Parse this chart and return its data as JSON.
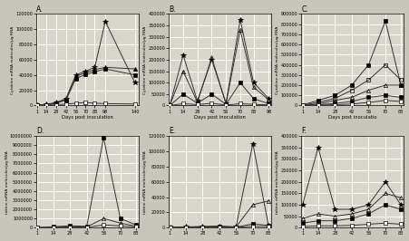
{
  "panels": [
    {
      "label": "A.",
      "xlabel": "Days post inoculation",
      "ylabel": "Cytokine mRNA molecules/µg RNA",
      "xlim": [
        0,
        145
      ],
      "ylim": [
        0,
        120000
      ],
      "yticks": [
        0,
        20000,
        40000,
        60000,
        80000,
        100000,
        120000
      ],
      "xticks": [
        1,
        14,
        28,
        42,
        56,
        70,
        83,
        98,
        140
      ],
      "series": [
        {
          "x": [
            1,
            14,
            28,
            42,
            56,
            70,
            83,
            98,
            140
          ],
          "y": [
            500,
            1500,
            4000,
            9000,
            40000,
            45000,
            50000,
            110000,
            30000
          ],
          "marker": "*",
          "mfc": "black",
          "mec": "black",
          "ms": 4,
          "lw": 0.7
        },
        {
          "x": [
            1,
            14,
            28,
            42,
            56,
            70,
            83,
            98,
            140
          ],
          "y": [
            400,
            1200,
            3500,
            8000,
            38000,
            43000,
            47000,
            50000,
            48000
          ],
          "marker": "^",
          "mfc": "black",
          "mec": "black",
          "ms": 3,
          "lw": 0.7
        },
        {
          "x": [
            1,
            14,
            28,
            42,
            56,
            70,
            83,
            98,
            140
          ],
          "y": [
            300,
            1000,
            3000,
            7000,
            35000,
            41000,
            44000,
            48000,
            40000
          ],
          "marker": "s",
          "mfc": "black",
          "mec": "black",
          "ms": 3,
          "lw": 0.7
        },
        {
          "x": [
            1,
            14,
            28,
            42,
            56,
            70,
            83,
            98,
            140
          ],
          "y": [
            200,
            600,
            1000,
            2000,
            3000,
            4000,
            3000,
            2500,
            2000
          ],
          "marker": "s",
          "mfc": "white",
          "mec": "black",
          "ms": 3,
          "lw": 0.7
        }
      ]
    },
    {
      "label": "B.",
      "xlabel": "Days post inoculation",
      "ylabel": "Cytokine mRNA molecules/µg RNA",
      "xlim": [
        0,
        100
      ],
      "ylim": [
        0,
        400000
      ],
      "yticks": [
        0,
        50000,
        100000,
        150000,
        200000,
        250000,
        300000,
        350000,
        400000
      ],
      "xticks": [
        1,
        14,
        28,
        42,
        56,
        70,
        83,
        98
      ],
      "series": [
        {
          "x": [
            1,
            14,
            28,
            42,
            56,
            70,
            83,
            98
          ],
          "y": [
            2000,
            220000,
            20000,
            200000,
            10000,
            375000,
            100000,
            30000
          ],
          "marker": "*",
          "mfc": "black",
          "mec": "black",
          "ms": 4,
          "lw": 0.7
        },
        {
          "x": [
            1,
            14,
            28,
            42,
            56,
            70,
            83,
            98
          ],
          "y": [
            1500,
            150000,
            15000,
            210000,
            8000,
            330000,
            80000,
            25000
          ],
          "marker": "^",
          "mfc": "none",
          "mec": "black",
          "ms": 3,
          "lw": 0.7
        },
        {
          "x": [
            1,
            14,
            28,
            42,
            56,
            70,
            83,
            98
          ],
          "y": [
            800,
            50000,
            10000,
            50000,
            5000,
            100000,
            30000,
            8000
          ],
          "marker": "s",
          "mfc": "black",
          "mec": "black",
          "ms": 3,
          "lw": 0.7
        },
        {
          "x": [
            1,
            14,
            28,
            42,
            56,
            70,
            83,
            98
          ],
          "y": [
            300,
            8000,
            4000,
            10000,
            2000,
            8000,
            5000,
            3000
          ],
          "marker": "s",
          "mfc": "white",
          "mec": "black",
          "ms": 3,
          "lw": 0.7
        }
      ]
    },
    {
      "label": "C.",
      "xlabel": "Days post inoculatio",
      "ylabel": "Cytokine mRNA molecules/µg RNA",
      "xlim": [
        0,
        85
      ],
      "ylim": [
        0,
        900000
      ],
      "yticks": [
        0,
        100000,
        200000,
        300000,
        400000,
        500000,
        600000,
        700000,
        800000,
        900000
      ],
      "xticks": [
        1,
        14,
        28,
        42,
        56,
        70,
        83
      ],
      "series": [
        {
          "x": [
            1,
            14,
            28,
            42,
            56,
            70,
            83
          ],
          "y": [
            5000,
            50000,
            100000,
            200000,
            400000,
            830000,
            200000
          ],
          "marker": "s",
          "mfc": "black",
          "mec": "black",
          "ms": 3,
          "lw": 0.7
        },
        {
          "x": [
            1,
            14,
            28,
            42,
            56,
            70,
            83
          ],
          "y": [
            3000,
            30000,
            70000,
            150000,
            250000,
            400000,
            250000
          ],
          "marker": "s",
          "mfc": "none",
          "mec": "black",
          "ms": 3,
          "lw": 0.7
        },
        {
          "x": [
            1,
            14,
            28,
            42,
            56,
            70,
            83
          ],
          "y": [
            2000,
            15000,
            50000,
            80000,
            150000,
            200000,
            200000
          ],
          "marker": "^",
          "mfc": "none",
          "mec": "black",
          "ms": 3,
          "lw": 0.7
        },
        {
          "x": [
            1,
            14,
            28,
            42,
            56,
            70,
            83
          ],
          "y": [
            1000,
            8000,
            20000,
            40000,
            80000,
            100000,
            80000
          ],
          "marker": "s",
          "mfc": "black",
          "mec": "black",
          "ms": 3,
          "lw": 0.7
        },
        {
          "x": [
            1,
            14,
            28,
            42,
            56,
            70,
            83
          ],
          "y": [
            500,
            3000,
            8000,
            15000,
            30000,
            50000,
            40000
          ],
          "marker": "s",
          "mfc": "white",
          "mec": "black",
          "ms": 3,
          "lw": 0.7
        }
      ]
    },
    {
      "label": "D.",
      "xlabel": "",
      "ylabel": "tokine mRNA molecules/µg RNA",
      "xlim": [
        0,
        85
      ],
      "ylim": [
        0,
        10000000
      ],
      "yticks": [
        0,
        1000000,
        2000000,
        3000000,
        4000000,
        5000000,
        6000000,
        7000000,
        8000000,
        9000000,
        10000000
      ],
      "xticks": [
        1,
        14,
        28,
        42,
        56,
        70,
        83
      ],
      "series": [
        {
          "x": [
            1,
            14,
            28,
            42,
            56,
            70,
            83
          ],
          "y": [
            5000,
            100000,
            200000,
            150000,
            9800000,
            1000000,
            300000
          ],
          "marker": "s",
          "mfc": "black",
          "mec": "black",
          "ms": 3,
          "lw": 0.7
        },
        {
          "x": [
            1,
            14,
            28,
            42,
            56,
            70,
            83
          ],
          "y": [
            3000,
            50000,
            100000,
            80000,
            1000000,
            500000,
            150000
          ],
          "marker": "^",
          "mfc": "none",
          "mec": "black",
          "ms": 3,
          "lw": 0.7
        },
        {
          "x": [
            1,
            14,
            28,
            42,
            56,
            70,
            83
          ],
          "y": [
            1500,
            20000,
            50000,
            30000,
            300000,
            200000,
            80000
          ],
          "marker": "s",
          "mfc": "white",
          "mec": "black",
          "ms": 3,
          "lw": 0.7
        }
      ]
    },
    {
      "label": "E.",
      "xlabel": "",
      "ylabel": "tokine mRNA molecules/µg RNA",
      "xlim": [
        0,
        85
      ],
      "ylim": [
        0,
        120000
      ],
      "yticks": [
        0,
        20000,
        40000,
        60000,
        80000,
        100000,
        120000
      ],
      "xticks": [
        1,
        14,
        28,
        42,
        56,
        70,
        83
      ],
      "series": [
        {
          "x": [
            1,
            14,
            28,
            42,
            56,
            70,
            83
          ],
          "y": [
            200,
            1000,
            1500,
            2000,
            1000,
            110000,
            3000
          ],
          "marker": "*",
          "mfc": "black",
          "mec": "black",
          "ms": 4,
          "lw": 0.7
        },
        {
          "x": [
            1,
            14,
            28,
            42,
            56,
            70,
            83
          ],
          "y": [
            150,
            800,
            1200,
            1800,
            800,
            30000,
            35000
          ],
          "marker": "^",
          "mfc": "none",
          "mec": "black",
          "ms": 3,
          "lw": 0.7
        },
        {
          "x": [
            1,
            14,
            28,
            42,
            56,
            70,
            83
          ],
          "y": [
            100,
            500,
            800,
            1200,
            600,
            5000,
            3000
          ],
          "marker": "s",
          "mfc": "black",
          "mec": "black",
          "ms": 3,
          "lw": 0.7
        },
        {
          "x": [
            1,
            14,
            28,
            42,
            56,
            70,
            83
          ],
          "y": [
            50,
            200,
            400,
            600,
            300,
            2000,
            1500
          ],
          "marker": "s",
          "mfc": "white",
          "mec": "black",
          "ms": 3,
          "lw": 0.7
        }
      ]
    },
    {
      "label": "F.",
      "xlabel": "",
      "ylabel": "tokine mRNA molecules/µg RNA",
      "xlim": [
        0,
        85
      ],
      "ylim": [
        0,
        400000
      ],
      "yticks": [
        0,
        50000,
        100000,
        150000,
        200000,
        250000,
        300000,
        350000,
        400000
      ],
      "xticks": [
        1,
        14,
        28,
        42,
        56,
        70,
        83
      ],
      "series": [
        {
          "x": [
            1,
            14,
            28,
            42,
            56,
            70,
            83
          ],
          "y": [
            100000,
            350000,
            80000,
            80000,
            100000,
            200000,
            100000
          ],
          "marker": "*",
          "mfc": "black",
          "mec": "black",
          "ms": 4,
          "lw": 0.7
        },
        {
          "x": [
            1,
            14,
            28,
            42,
            56,
            70,
            83
          ],
          "y": [
            40000,
            60000,
            50000,
            60000,
            80000,
            150000,
            130000
          ],
          "marker": "^",
          "mfc": "none",
          "mec": "black",
          "ms": 3,
          "lw": 0.7
        },
        {
          "x": [
            1,
            14,
            28,
            42,
            56,
            70,
            83
          ],
          "y": [
            20000,
            30000,
            30000,
            40000,
            60000,
            100000,
            80000
          ],
          "marker": "s",
          "mfc": "black",
          "mec": "black",
          "ms": 3,
          "lw": 0.7
        },
        {
          "x": [
            1,
            14,
            28,
            42,
            56,
            70,
            83
          ],
          "y": [
            5000,
            8000,
            8000,
            10000,
            15000,
            20000,
            15000
          ],
          "marker": "s",
          "mfc": "white",
          "mec": "black",
          "ms": 3,
          "lw": 0.7
        }
      ]
    }
  ],
  "bg_color": "#d8d5cc",
  "grid_color": "white",
  "line_color": "#333333",
  "fig_bg": "#c8c5bc"
}
